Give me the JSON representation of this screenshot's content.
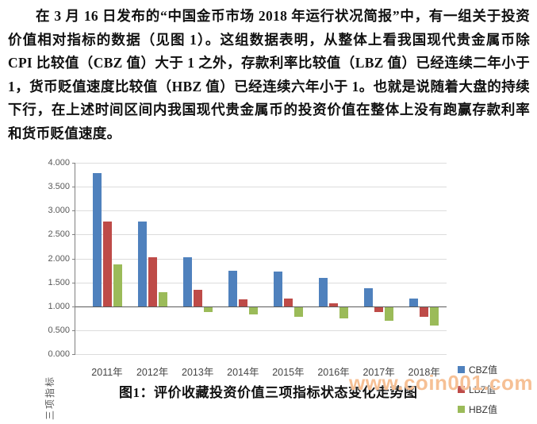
{
  "document": {
    "paragraph": "在 3 月 16 日发布的“中国金币市场 2018 年运行状况简报”中，有一组关于投资价值相对指标的数据（见图 1）。这组数据表明，从整体上看我国现代贵金属币除 CPI 比较值（CBZ 值）大于 1 之外，存款利率比较值（LBZ 值）已经连续二年小于 1，货币贬值速度比较值（HBZ 值）已经连续六年小于 1。也就是说随着大盘的持续下行，在上述时间区间内我国现代贵金属币的投资价值在整体上没有跑赢存款利率和货币贬值速度。",
    "caption": "图1：评价收藏投资价值三项指标状态变化走势图",
    "watermark": "www.coin001.com"
  },
  "colors": {
    "cbz": "#4F81BD",
    "lbz": "#BE4B48",
    "hbz": "#9BBB59",
    "gridline": "#DCDCDC",
    "axis_line": "#595959",
    "tick_text": "#595959",
    "category_text": "#444444",
    "watermark": "#F6C095"
  },
  "chart_data": {
    "type": "bar",
    "title": "",
    "xlabel": "",
    "ylabel": "三项指标",
    "categories": [
      "2011年",
      "2012年",
      "2013年",
      "2014年",
      "2015年",
      "2016年",
      "2017年",
      "2018年"
    ],
    "series": [
      {
        "name": "CBZ值",
        "color": "#4F81BD",
        "values": [
          3.79,
          2.77,
          2.03,
          1.74,
          1.72,
          1.59,
          1.38,
          1.16
        ]
      },
      {
        "name": "LBZ值",
        "color": "#BE4B48",
        "values": [
          2.77,
          2.02,
          1.35,
          1.14,
          1.16,
          1.06,
          0.9,
          0.8
        ]
      },
      {
        "name": "HBZ值",
        "color": "#9BBB59",
        "values": [
          1.88,
          1.29,
          0.9,
          0.84,
          0.8,
          0.77,
          0.71,
          0.62
        ]
      }
    ],
    "ylim": [
      0,
      4
    ],
    "ytick_step": 0.5,
    "ytick_labels": [
      "4.000",
      "3.500",
      "3.000",
      "2.500",
      "2.000",
      "1.500",
      "1.000",
      "0.500",
      "0.000"
    ],
    "category_axis_crosses_at": 1.0,
    "grid": true,
    "legend_position": "right",
    "legend": [
      "CBZ值",
      "LBZ值",
      "HBZ值"
    ]
  }
}
